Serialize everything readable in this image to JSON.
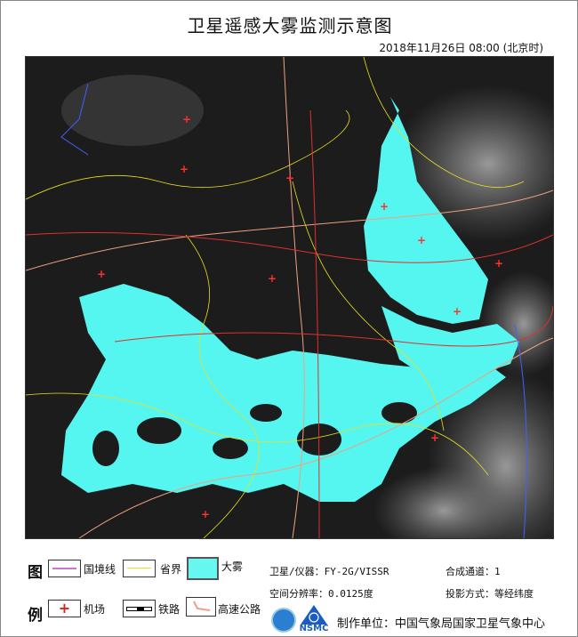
{
  "title": "卫星遥感大雾监测示意图",
  "datetime": "2018年11月26日 08:00 (北京时)",
  "legend": {
    "heading_top": "图",
    "heading_bottom": "例",
    "items": [
      {
        "label": "国境线",
        "color": "#d070d0"
      },
      {
        "label": "省界",
        "color": "#e8e020"
      },
      {
        "label": "大雾",
        "color": "#66f8f0"
      },
      {
        "label": "机场",
        "color": "#e02020"
      },
      {
        "label": "铁路",
        "color": "#000000"
      },
      {
        "label": "高速公路",
        "color": "#f0a080"
      }
    ]
  },
  "info": {
    "satellite": "卫星/仪器：FY-2G/VISSR",
    "channel": "合成通道：1",
    "resolution": "空间分辨率：0.0125度",
    "projection": "投影方式：等经纬度",
    "producer": "制作单位：中国气象局国家卫星气象中心",
    "logo_text": "NSMC"
  },
  "colors": {
    "fog": "#55f5f0",
    "background": "#1a1a1a",
    "cloud": "#9a9a9a"
  }
}
